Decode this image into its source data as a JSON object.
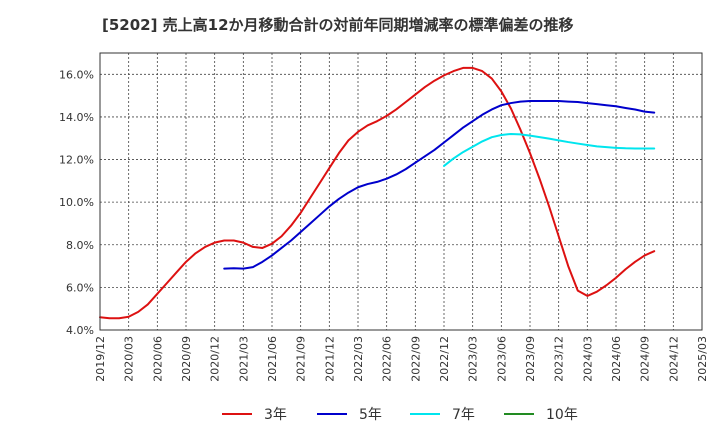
{
  "chart_data": {
    "type": "line",
    "title": "[5202]  売上高12か月移動合計の対前年同期増減率の標準偏差の推移",
    "xlabel": "",
    "ylabel": "",
    "x_ticks": [
      "2019/12",
      "2020/03",
      "2020/06",
      "2020/09",
      "2020/12",
      "2021/03",
      "2021/06",
      "2021/09",
      "2021/12",
      "2022/03",
      "2022/06",
      "2022/09",
      "2022/12",
      "2023/03",
      "2023/06",
      "2023/09",
      "2023/12",
      "2024/03",
      "2024/06",
      "2024/09",
      "2024/12",
      "2025/03"
    ],
    "x_range": [
      "2019/12",
      "2025/03"
    ],
    "y_ticks": [
      "4.0%",
      "6.0%",
      "8.0%",
      "10.0%",
      "12.0%",
      "14.0%",
      "16.0%"
    ],
    "ylim": [
      4.0,
      17.0
    ],
    "grid": true,
    "legend_position": "bottom",
    "series": [
      {
        "name": "3年",
        "color": "#dd1111",
        "points": [
          [
            "2019/12",
            4.6
          ],
          [
            "2020/01",
            4.55
          ],
          [
            "2020/02",
            4.55
          ],
          [
            "2020/03",
            4.62
          ],
          [
            "2020/04",
            4.85
          ],
          [
            "2020/05",
            5.2
          ],
          [
            "2020/06",
            5.7
          ],
          [
            "2020/07",
            6.2
          ],
          [
            "2020/08",
            6.7
          ],
          [
            "2020/09",
            7.2
          ],
          [
            "2020/10",
            7.6
          ],
          [
            "2020/11",
            7.9
          ],
          [
            "2020/12",
            8.1
          ],
          [
            "2021/01",
            8.2
          ],
          [
            "2021/02",
            8.2
          ],
          [
            "2021/03",
            8.1
          ],
          [
            "2021/04",
            7.9
          ],
          [
            "2021/05",
            7.85
          ],
          [
            "2021/06",
            8.05
          ],
          [
            "2021/07",
            8.4
          ],
          [
            "2021/08",
            8.9
          ],
          [
            "2021/09",
            9.5
          ],
          [
            "2021/10",
            10.2
          ],
          [
            "2021/11",
            10.9
          ],
          [
            "2021/12",
            11.6
          ],
          [
            "2022/01",
            12.3
          ],
          [
            "2022/02",
            12.9
          ],
          [
            "2022/03",
            13.3
          ],
          [
            "2022/04",
            13.6
          ],
          [
            "2022/05",
            13.8
          ],
          [
            "2022/06",
            14.05
          ],
          [
            "2022/07",
            14.35
          ],
          [
            "2022/08",
            14.7
          ],
          [
            "2022/09",
            15.05
          ],
          [
            "2022/10",
            15.4
          ],
          [
            "2022/11",
            15.7
          ],
          [
            "2022/12",
            15.95
          ],
          [
            "2023/01",
            16.15
          ],
          [
            "2023/02",
            16.3
          ],
          [
            "2023/03",
            16.3
          ],
          [
            "2023/04",
            16.15
          ],
          [
            "2023/05",
            15.8
          ],
          [
            "2023/06",
            15.2
          ],
          [
            "2023/07",
            14.4
          ],
          [
            "2023/08",
            13.4
          ],
          [
            "2023/09",
            12.3
          ],
          [
            "2023/10",
            11.1
          ],
          [
            "2023/11",
            9.8
          ],
          [
            "2023/12",
            8.4
          ],
          [
            "2024/01",
            7.0
          ],
          [
            "2024/02",
            5.85
          ],
          [
            "2024/03",
            5.6
          ],
          [
            "2024/04",
            5.8
          ],
          [
            "2024/05",
            6.1
          ],
          [
            "2024/06",
            6.45
          ],
          [
            "2024/07",
            6.85
          ],
          [
            "2024/08",
            7.2
          ],
          [
            "2024/09",
            7.5
          ],
          [
            "2024/10",
            7.7
          ]
        ]
      },
      {
        "name": "5年",
        "color": "#0000cc",
        "points": [
          [
            "2021/01",
            6.88
          ],
          [
            "2021/02",
            6.9
          ],
          [
            "2021/03",
            6.88
          ],
          [
            "2021/04",
            6.95
          ],
          [
            "2021/05",
            7.2
          ],
          [
            "2021/06",
            7.5
          ],
          [
            "2021/07",
            7.85
          ],
          [
            "2021/08",
            8.2
          ],
          [
            "2021/09",
            8.6
          ],
          [
            "2021/10",
            9.0
          ],
          [
            "2021/11",
            9.4
          ],
          [
            "2021/12",
            9.8
          ],
          [
            "2022/01",
            10.15
          ],
          [
            "2022/02",
            10.45
          ],
          [
            "2022/03",
            10.7
          ],
          [
            "2022/04",
            10.85
          ],
          [
            "2022/05",
            10.95
          ],
          [
            "2022/06",
            11.1
          ],
          [
            "2022/07",
            11.3
          ],
          [
            "2022/08",
            11.55
          ],
          [
            "2022/09",
            11.85
          ],
          [
            "2022/10",
            12.15
          ],
          [
            "2022/11",
            12.45
          ],
          [
            "2022/12",
            12.8
          ],
          [
            "2023/01",
            13.15
          ],
          [
            "2023/02",
            13.5
          ],
          [
            "2023/03",
            13.8
          ],
          [
            "2023/04",
            14.1
          ],
          [
            "2023/05",
            14.35
          ],
          [
            "2023/06",
            14.55
          ],
          [
            "2023/07",
            14.65
          ],
          [
            "2023/08",
            14.72
          ],
          [
            "2023/09",
            14.75
          ],
          [
            "2023/10",
            14.75
          ],
          [
            "2023/11",
            14.75
          ],
          [
            "2023/12",
            14.75
          ],
          [
            "2024/01",
            14.72
          ],
          [
            "2024/02",
            14.7
          ],
          [
            "2024/03",
            14.65
          ],
          [
            "2024/04",
            14.6
          ],
          [
            "2024/05",
            14.55
          ],
          [
            "2024/06",
            14.5
          ],
          [
            "2024/07",
            14.42
          ],
          [
            "2024/08",
            14.35
          ],
          [
            "2024/09",
            14.25
          ],
          [
            "2024/10",
            14.2
          ]
        ]
      },
      {
        "name": "7年",
        "color": "#00e5ee",
        "points": [
          [
            "2022/12",
            11.7
          ],
          [
            "2023/01",
            12.05
          ],
          [
            "2023/02",
            12.35
          ],
          [
            "2023/03",
            12.6
          ],
          [
            "2023/04",
            12.85
          ],
          [
            "2023/05",
            13.05
          ],
          [
            "2023/06",
            13.15
          ],
          [
            "2023/07",
            13.2
          ],
          [
            "2023/08",
            13.18
          ],
          [
            "2023/09",
            13.12
          ],
          [
            "2023/10",
            13.05
          ],
          [
            "2023/11",
            12.98
          ],
          [
            "2023/12",
            12.9
          ],
          [
            "2024/01",
            12.82
          ],
          [
            "2024/02",
            12.75
          ],
          [
            "2024/03",
            12.68
          ],
          [
            "2024/04",
            12.62
          ],
          [
            "2024/05",
            12.58
          ],
          [
            "2024/06",
            12.55
          ],
          [
            "2024/07",
            12.53
          ],
          [
            "2024/08",
            12.52
          ],
          [
            "2024/09",
            12.52
          ],
          [
            "2024/10",
            12.52
          ]
        ]
      },
      {
        "name": "10年",
        "color": "#228b22",
        "points": []
      }
    ]
  }
}
